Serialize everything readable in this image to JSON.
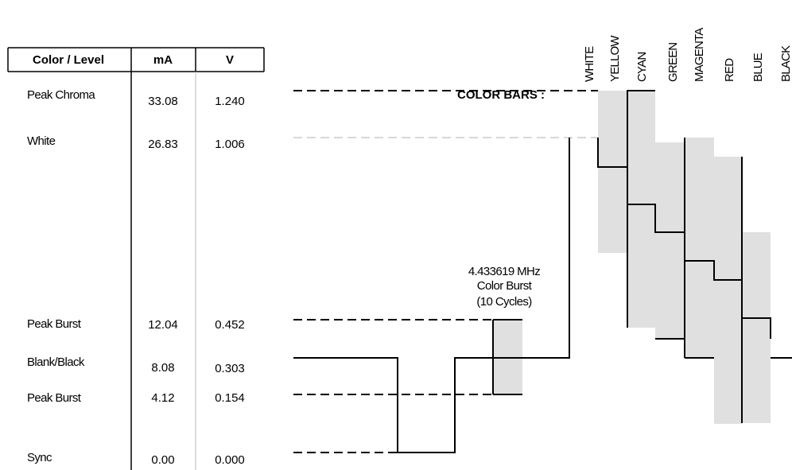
{
  "table": {
    "headers": [
      "Color / Level",
      "mA",
      "V"
    ],
    "rows": [
      {
        "label": "Peak Chroma",
        "mA": "33.08",
        "V": "1.240"
      },
      {
        "label": "White",
        "mA": "26.83",
        "V": "1.006"
      },
      {
        "label": "Peak Burst",
        "mA": "12.04",
        "V": "0.452"
      },
      {
        "label": "Blank/Black",
        "mA": "8.08",
        "V": "0.303"
      },
      {
        "label": "Peak Burst",
        "mA": "4.12",
        "V": "0.154"
      },
      {
        "label": "Sync",
        "mA": "0.00",
        "V": "0.000"
      }
    ]
  },
  "diagram": {
    "title": "COLOR BARS :",
    "bars": [
      "WHITE",
      "YELLOW",
      "CYAN",
      "GREEN",
      "MAGENTA",
      "RED",
      "BLUE",
      "BLACK"
    ],
    "burst_label": [
      "4.433619 MHz",
      "Color Burst",
      "(10 Cycles)"
    ],
    "colors": {
      "line": "#000000",
      "fill": "#e0e0e0",
      "dash": "#000000",
      "light_dash": "#b0b0b0"
    }
  }
}
